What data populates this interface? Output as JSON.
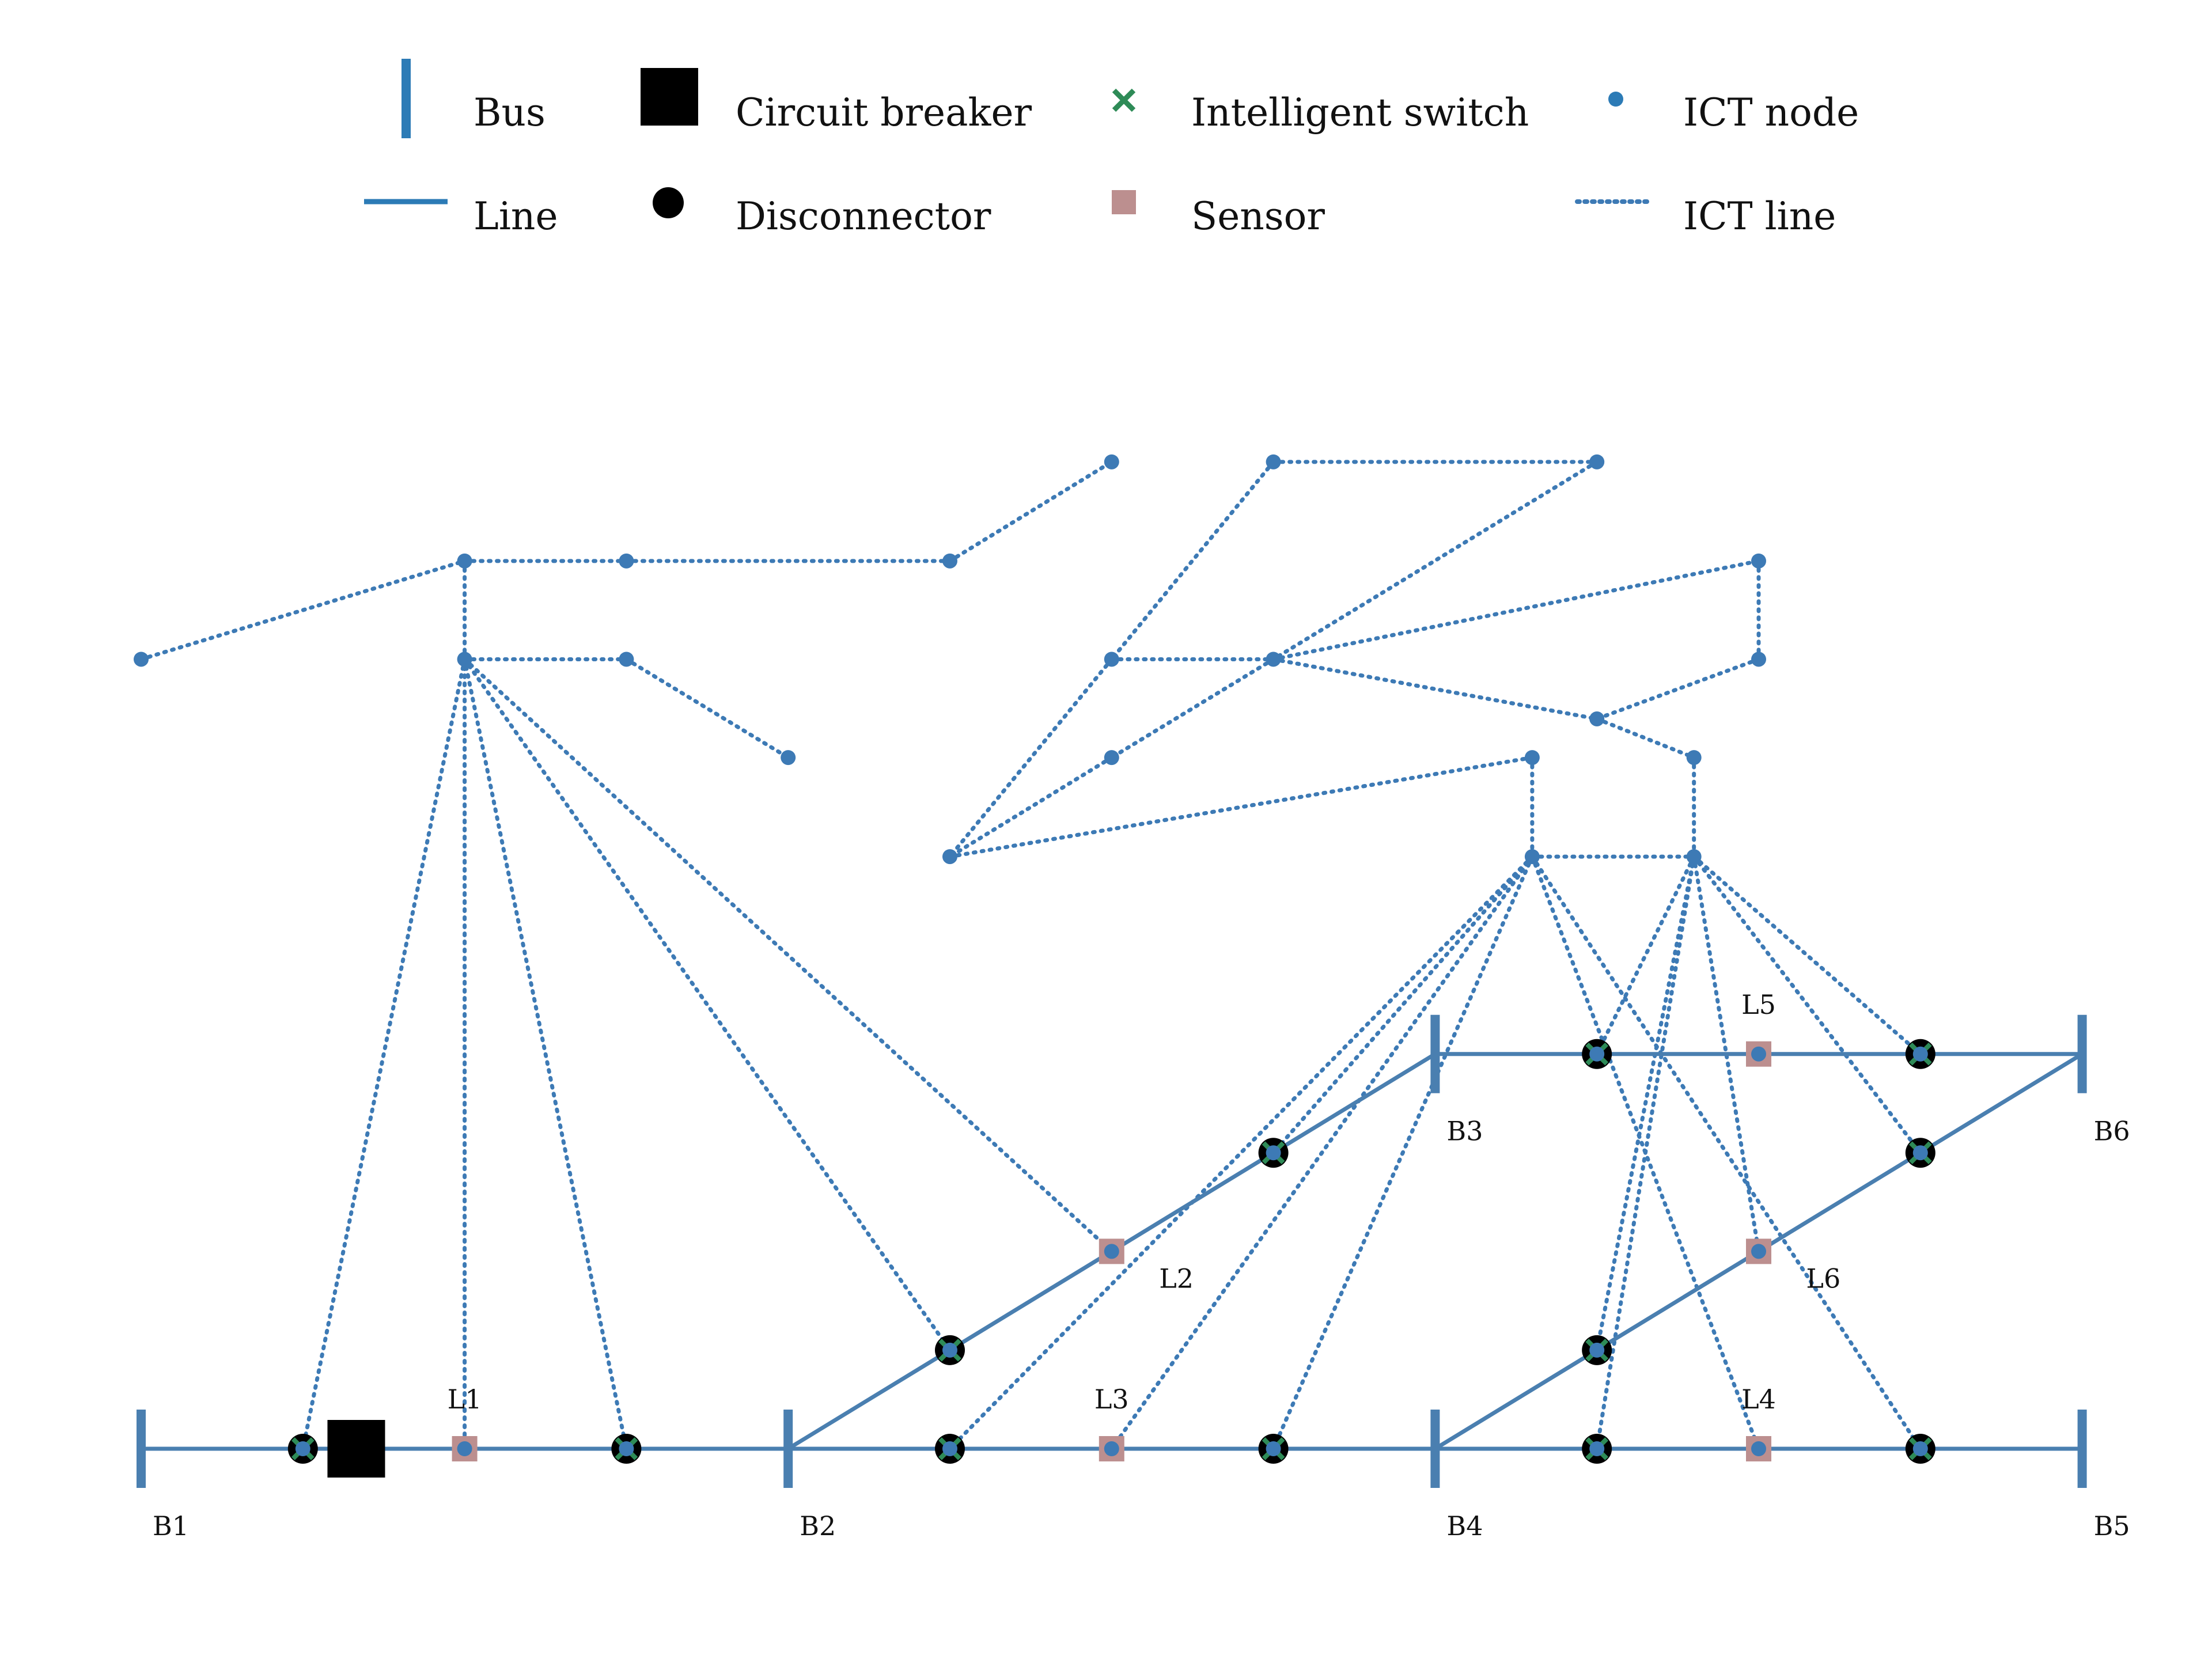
{
  "colors": {
    "bus": "#4a7fb0",
    "line": "#4a7fb0",
    "ict": "#3d7ab5",
    "breaker": "#000000",
    "disconnector": "#000000",
    "switch": "#2e8b57",
    "sensor": "#bc8f8f"
  },
  "legend": {
    "bus": "Bus",
    "circuit_breaker": "Circuit breaker",
    "intelligent_switch": "Intelligent switch",
    "ict_node": "ICT node",
    "line": "Line",
    "disconnector": "Disconnector",
    "sensor": "Sensor",
    "ict_line": "ICT line"
  },
  "buses": [
    {
      "label": "B1",
      "x": 0,
      "y": 0
    },
    {
      "label": "B2",
      "x": 4,
      "y": 0
    },
    {
      "label": "B3",
      "x": 8,
      "y": 2.45
    },
    {
      "label": "B4",
      "x": 8,
      "y": 0
    },
    {
      "label": "B5",
      "x": 12,
      "y": 0
    },
    {
      "label": "B6",
      "x": 12,
      "y": 2.45
    }
  ],
  "lines": [
    {
      "from": "B1",
      "to": "B2",
      "label": "L1",
      "label_x": 2,
      "label_y": 0.25
    },
    {
      "from": "B2",
      "to": "B3",
      "label": "L2",
      "label_x": 6.4,
      "label_y": 1.0
    },
    {
      "from": "B2",
      "to": "B4",
      "label": "L3",
      "label_x": 6,
      "label_y": 0.25
    },
    {
      "from": "B4",
      "to": "B5",
      "label": "L4",
      "label_x": 10,
      "label_y": 0.25
    },
    {
      "from": "B3",
      "to": "B6",
      "label": "L5",
      "label_x": 10,
      "label_y": 2.7
    },
    {
      "from": "B4",
      "to": "B6",
      "label": "L6",
      "label_x": 10.4,
      "label_y": 1.0
    }
  ],
  "circuit_breakers": [
    {
      "x": 1.33,
      "y": 0
    }
  ],
  "switches": [
    {
      "x": 1,
      "y": 0
    },
    {
      "x": 3,
      "y": 0
    },
    {
      "x": 5,
      "y": 0.612
    },
    {
      "x": 7,
      "y": 1.837
    },
    {
      "x": 5,
      "y": 0
    },
    {
      "x": 7,
      "y": 0
    },
    {
      "x": 9,
      "y": 0
    },
    {
      "x": 11,
      "y": 0
    },
    {
      "x": 9,
      "y": 2.45
    },
    {
      "x": 11,
      "y": 2.45
    },
    {
      "x": 9,
      "y": 0.612
    },
    {
      "x": 11,
      "y": 1.837
    }
  ],
  "sensors": [
    {
      "x": 2,
      "y": 0
    },
    {
      "x": 6,
      "y": 1.225
    },
    {
      "x": 6,
      "y": 0
    },
    {
      "x": 10,
      "y": 0
    },
    {
      "x": 10,
      "y": 2.45
    },
    {
      "x": 10,
      "y": 1.225
    }
  ],
  "ict_nodes": [
    {
      "x": 0,
      "y": 4.9
    },
    {
      "x": 2,
      "y": 5.51
    },
    {
      "x": 3,
      "y": 5.51
    },
    {
      "x": 5,
      "y": 5.51
    },
    {
      "x": 6,
      "y": 6.125
    },
    {
      "x": 2,
      "y": 4.9
    },
    {
      "x": 3,
      "y": 4.9
    },
    {
      "x": 4,
      "y": 4.29
    },
    {
      "x": 7,
      "y": 6.125
    },
    {
      "x": 9,
      "y": 6.125
    },
    {
      "x": 6,
      "y": 4.9
    },
    {
      "x": 7,
      "y": 4.9
    },
    {
      "x": 6,
      "y": 4.29
    },
    {
      "x": 5,
      "y": 3.675
    },
    {
      "x": 10,
      "y": 5.51
    },
    {
      "x": 10,
      "y": 4.9
    },
    {
      "x": 9,
      "y": 4.53
    },
    {
      "x": 8.6,
      "y": 4.29
    },
    {
      "x": 9.6,
      "y": 4.29
    },
    {
      "x": 8.6,
      "y": 3.675
    },
    {
      "x": 9.6,
      "y": 3.675
    }
  ],
  "ict_links": [
    [
      [
        0,
        4.9
      ],
      [
        2,
        5.51
      ]
    ],
    [
      [
        2,
        5.51
      ],
      [
        3,
        5.51
      ]
    ],
    [
      [
        3,
        5.51
      ],
      [
        5,
        5.51
      ]
    ],
    [
      [
        5,
        5.51
      ],
      [
        6,
        6.125
      ]
    ],
    [
      [
        2,
        5.51
      ],
      [
        2,
        4.9
      ]
    ],
    [
      [
        2,
        4.9
      ],
      [
        3,
        4.9
      ]
    ],
    [
      [
        3,
        4.9
      ],
      [
        4,
        4.29
      ]
    ],
    [
      [
        2,
        4.9
      ],
      [
        1,
        0
      ]
    ],
    [
      [
        2,
        4.9
      ],
      [
        2,
        0
      ]
    ],
    [
      [
        2,
        4.9
      ],
      [
        3,
        0
      ]
    ],
    [
      [
        2,
        4.9
      ],
      [
        5,
        0.612
      ]
    ],
    [
      [
        2,
        4.9
      ],
      [
        6,
        1.225
      ]
    ],
    [
      [
        7,
        6.125
      ],
      [
        9,
        6.125
      ]
    ],
    [
      [
        7,
        6.125
      ],
      [
        6,
        4.9
      ]
    ],
    [
      [
        9,
        6.125
      ],
      [
        7,
        4.9
      ]
    ],
    [
      [
        6,
        4.9
      ],
      [
        7,
        4.9
      ]
    ],
    [
      [
        7,
        4.9
      ],
      [
        10,
        5.51
      ]
    ],
    [
      [
        10,
        5.51
      ],
      [
        10,
        4.9
      ]
    ],
    [
      [
        7,
        4.9
      ],
      [
        9,
        4.53
      ]
    ],
    [
      [
        10,
        4.9
      ],
      [
        9,
        4.53
      ]
    ],
    [
      [
        9,
        4.53
      ],
      [
        9.6,
        4.29
      ]
    ],
    [
      [
        7,
        4.9
      ],
      [
        6,
        4.29
      ]
    ],
    [
      [
        6,
        4.9
      ],
      [
        5,
        3.675
      ]
    ],
    [
      [
        6,
        4.29
      ],
      [
        5,
        3.675
      ]
    ],
    [
      [
        5,
        3.675
      ],
      [
        8.6,
        4.29
      ]
    ],
    [
      [
        8.6,
        4.29
      ],
      [
        8.6,
        3.675
      ]
    ],
    [
      [
        9.6,
        4.29
      ],
      [
        9.6,
        3.675
      ]
    ],
    [
      [
        8.6,
        3.675
      ],
      [
        9.6,
        3.675
      ]
    ],
    [
      [
        8.6,
        3.675
      ],
      [
        7,
        1.837
      ]
    ],
    [
      [
        8.6,
        3.675
      ],
      [
        6,
        0
      ]
    ],
    [
      [
        8.6,
        3.675
      ],
      [
        7,
        0
      ]
    ],
    [
      [
        8.6,
        3.675
      ],
      [
        5,
        0
      ]
    ],
    [
      [
        8.6,
        3.675
      ],
      [
        10,
        0
      ]
    ],
    [
      [
        8.6,
        3.675
      ],
      [
        11,
        0
      ]
    ],
    [
      [
        9.6,
        3.675
      ],
      [
        9,
        2.45
      ]
    ],
    [
      [
        9.6,
        3.675
      ],
      [
        9,
        0
      ]
    ],
    [
      [
        9.6,
        3.675
      ],
      [
        9,
        0.612
      ]
    ],
    [
      [
        9.6,
        3.675
      ],
      [
        10,
        1.225
      ]
    ],
    [
      [
        9.6,
        3.675
      ],
      [
        11,
        2.45
      ]
    ],
    [
      [
        9.6,
        3.675
      ],
      [
        11,
        1.837
      ]
    ]
  ]
}
